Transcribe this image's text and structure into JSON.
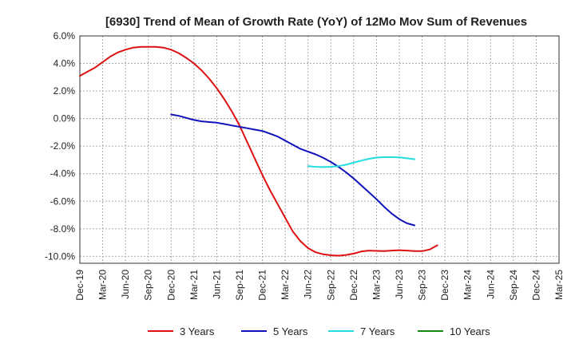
{
  "chart_data": {
    "type": "line",
    "title": "[6930]  Trend of Mean of Growth Rate (YoY) of 12Mo Mov Sum of Revenues",
    "xlabel": "",
    "ylabel": "",
    "ylim": [
      -10.5,
      6.0
    ],
    "y_ticks": [
      6.0,
      4.0,
      2.0,
      0.0,
      -2.0,
      -4.0,
      -6.0,
      -8.0,
      -10.0
    ],
    "y_tick_labels": [
      "6.0%",
      "4.0%",
      "2.0%",
      "0.0%",
      "-2.0%",
      "-4.0%",
      "-6.0%",
      "-8.0%",
      "-10.0%"
    ],
    "x_tick_labels": [
      "Dec-19",
      "Mar-20",
      "Jun-20",
      "Sep-20",
      "Dec-20",
      "Mar-21",
      "Jun-21",
      "Sep-21",
      "Dec-21",
      "Mar-22",
      "Jun-22",
      "Sep-22",
      "Dec-22",
      "Mar-23",
      "Jun-23",
      "Sep-23",
      "Dec-23",
      "Mar-24",
      "Jun-24",
      "Sep-24",
      "Dec-24",
      "Mar-25"
    ],
    "x_unit": "months since Dec-19",
    "xlim": [
      0,
      63
    ],
    "grid": true,
    "legend_position": "bottom",
    "series": [
      {
        "name": "3 Years",
        "color": "#dd1111",
        "points": [
          [
            0,
            3.1
          ],
          [
            1,
            3.4
          ],
          [
            2,
            3.7
          ],
          [
            3,
            4.1
          ],
          [
            4,
            4.5
          ],
          [
            5,
            4.8
          ],
          [
            6,
            5.0
          ],
          [
            7,
            5.15
          ],
          [
            8,
            5.2
          ],
          [
            9,
            5.2
          ],
          [
            10,
            5.2
          ],
          [
            11,
            5.15
          ],
          [
            12,
            5.0
          ],
          [
            13,
            4.75
          ],
          [
            14,
            4.4
          ],
          [
            15,
            4.0
          ],
          [
            16,
            3.5
          ],
          [
            17,
            2.9
          ],
          [
            18,
            2.2
          ],
          [
            19,
            1.4
          ],
          [
            20,
            0.5
          ],
          [
            21,
            -0.5
          ],
          [
            22,
            -1.7
          ],
          [
            23,
            -2.9
          ],
          [
            24,
            -4.1
          ],
          [
            25,
            -5.2
          ],
          [
            26,
            -6.2
          ],
          [
            27,
            -7.2
          ],
          [
            28,
            -8.2
          ],
          [
            29,
            -8.9
          ],
          [
            30,
            -9.4
          ],
          [
            31,
            -9.7
          ],
          [
            32,
            -9.85
          ],
          [
            33,
            -9.92
          ],
          [
            34,
            -9.95
          ],
          [
            35,
            -9.9
          ],
          [
            36,
            -9.8
          ],
          [
            37,
            -9.65
          ],
          [
            38,
            -9.58
          ],
          [
            39,
            -9.6
          ],
          [
            40,
            -9.62
          ],
          [
            41,
            -9.58
          ],
          [
            42,
            -9.55
          ],
          [
            43,
            -9.58
          ],
          [
            44,
            -9.62
          ],
          [
            45,
            -9.62
          ],
          [
            46,
            -9.5
          ],
          [
            47,
            -9.2
          ]
        ]
      },
      {
        "name": "5 Years",
        "color": "#1111bb",
        "points": [
          [
            12,
            0.3
          ],
          [
            13,
            0.2
          ],
          [
            14,
            0.05
          ],
          [
            15,
            -0.1
          ],
          [
            16,
            -0.2
          ],
          [
            17,
            -0.25
          ],
          [
            18,
            -0.3
          ],
          [
            19,
            -0.4
          ],
          [
            20,
            -0.5
          ],
          [
            21,
            -0.6
          ],
          [
            22,
            -0.7
          ],
          [
            23,
            -0.8
          ],
          [
            24,
            -0.9
          ],
          [
            25,
            -1.1
          ],
          [
            26,
            -1.3
          ],
          [
            27,
            -1.6
          ],
          [
            28,
            -1.9
          ],
          [
            29,
            -2.2
          ],
          [
            30,
            -2.4
          ],
          [
            31,
            -2.6
          ],
          [
            32,
            -2.85
          ],
          [
            33,
            -3.15
          ],
          [
            34,
            -3.5
          ],
          [
            35,
            -3.9
          ],
          [
            36,
            -4.35
          ],
          [
            37,
            -4.85
          ],
          [
            38,
            -5.35
          ],
          [
            39,
            -5.85
          ],
          [
            40,
            -6.4
          ],
          [
            41,
            -6.9
          ],
          [
            42,
            -7.3
          ],
          [
            43,
            -7.6
          ],
          [
            44,
            -7.75
          ]
        ]
      },
      {
        "name": "7 Years",
        "color": "#22dddd",
        "points": [
          [
            30,
            -3.45
          ],
          [
            31,
            -3.5
          ],
          [
            32,
            -3.52
          ],
          [
            33,
            -3.5
          ],
          [
            34,
            -3.45
          ],
          [
            35,
            -3.35
          ],
          [
            36,
            -3.2
          ],
          [
            37,
            -3.05
          ],
          [
            38,
            -2.92
          ],
          [
            39,
            -2.83
          ],
          [
            40,
            -2.8
          ],
          [
            41,
            -2.8
          ],
          [
            42,
            -2.82
          ],
          [
            43,
            -2.88
          ],
          [
            44,
            -2.95
          ]
        ]
      },
      {
        "name": "10 Years",
        "color": "#118811",
        "points": []
      }
    ]
  }
}
